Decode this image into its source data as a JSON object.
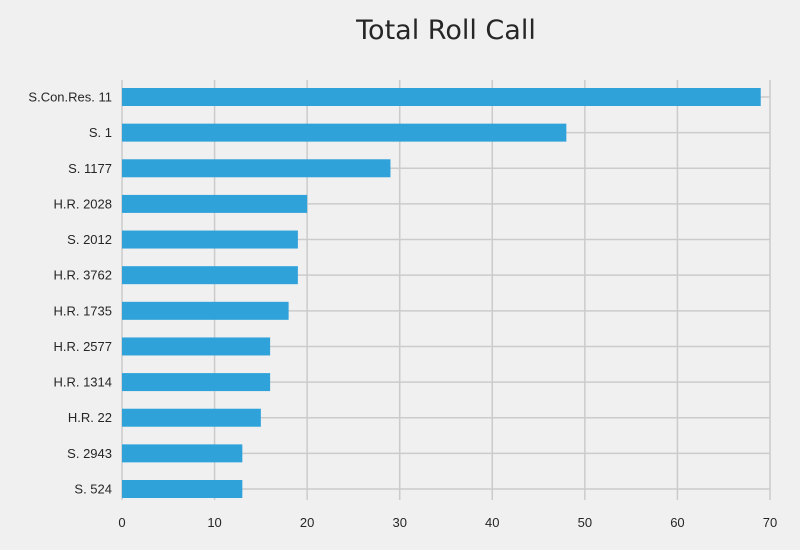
{
  "chart_data": {
    "type": "bar",
    "orientation": "horizontal",
    "title": "Total Roll Call",
    "xlabel": "",
    "ylabel": "",
    "xlim": [
      0,
      70
    ],
    "xticks": [
      0,
      10,
      20,
      30,
      40,
      50,
      60,
      70
    ],
    "grid": true,
    "legend": "none",
    "colors": {
      "bar": "#30a2da",
      "background": "#f0f0f0",
      "grid": "#cbcbcb",
      "text": "#262626"
    },
    "categories": [
      "S.Con.Res. 11",
      "S. 1",
      "S. 1177",
      "H.R. 2028",
      "S. 2012",
      "H.R. 3762",
      "H.R. 1735",
      "H.R. 2577",
      "H.R. 1314",
      "H.R. 22",
      "S. 2943",
      "S. 524"
    ],
    "values": [
      69,
      48,
      29,
      20,
      19,
      19,
      18,
      16,
      16,
      15,
      13,
      13
    ]
  }
}
